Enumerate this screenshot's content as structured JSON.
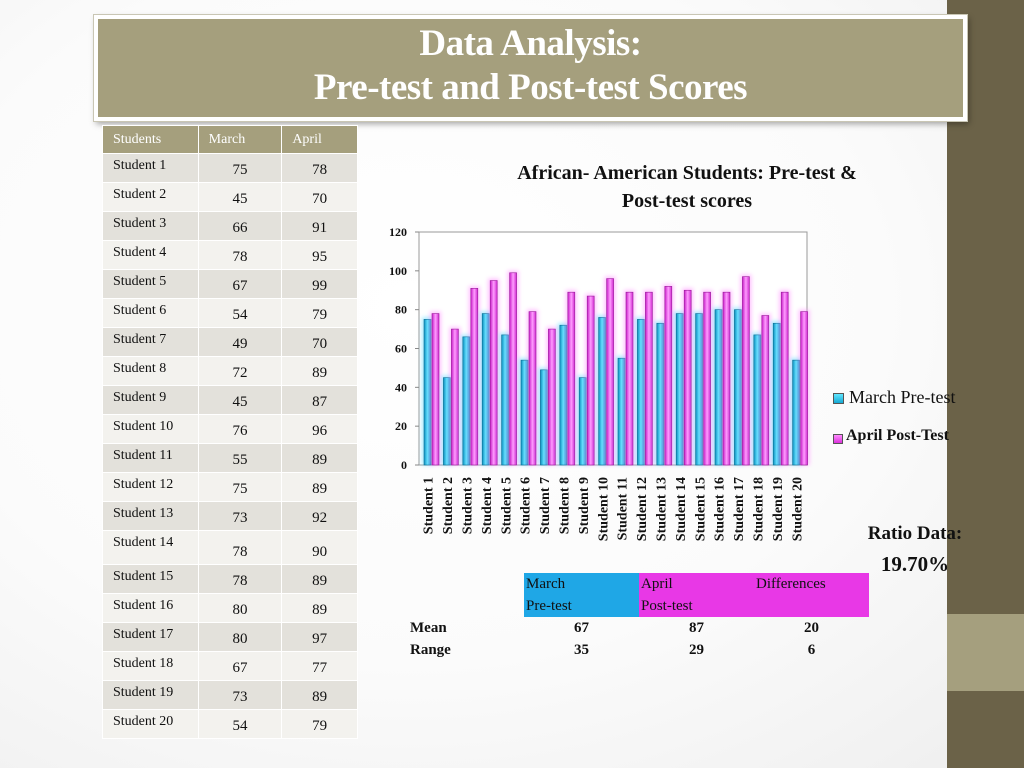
{
  "slide": {
    "title_line1": "Data Analysis:",
    "title_line2": "Pre-test and Post-test Scores"
  },
  "table": {
    "headers": [
      "Students",
      "March",
      "April"
    ],
    "rows": [
      {
        "student": "Student 1",
        "march": "75",
        "april": "78"
      },
      {
        "student": "Student 2",
        "march": "45",
        "april": "70"
      },
      {
        "student": "Student 3",
        "march": "66",
        "april": "91"
      },
      {
        "student": "Student 4",
        "march": "78",
        "april": "95"
      },
      {
        "student": "Student 5",
        "march": "67",
        "april": "99"
      },
      {
        "student": "Student 6",
        "march": "54",
        "april": "79"
      },
      {
        "student": "Student 7",
        "march": "49",
        "april": "70"
      },
      {
        "student": "Student 8",
        "march": "72",
        "april": "89"
      },
      {
        "student": "Student 9",
        "march": "45",
        "april": "87"
      },
      {
        "student": "Student 10",
        "march": "76",
        "april": "96"
      },
      {
        "student": "Student 11",
        "march": "55",
        "april": "89"
      },
      {
        "student": "Student 12",
        "march": "75",
        "april": "89"
      },
      {
        "student": "Student 13",
        "march": "73",
        "april": "92"
      },
      {
        "student": "Student 14",
        "march": "78",
        "april": "90"
      },
      {
        "student": "Student 15",
        "march": "78",
        "april": "89"
      },
      {
        "student": "Student 16",
        "march": "80",
        "april": "89"
      },
      {
        "student": "Student 17",
        "march": "80",
        "april": "97"
      },
      {
        "student": "Student 18",
        "march": "67",
        "april": "77"
      },
      {
        "student": "Student 19",
        "march": "73",
        "april": "89"
      },
      {
        "student": "Student 20",
        "march": "54",
        "april": "79"
      }
    ]
  },
  "chart_data": {
    "type": "bar",
    "title": "African- American Students: Pre-test & Post-test scores",
    "title_lines": [
      "African- American Students: Pre-test &",
      "Post-test scores"
    ],
    "categories": [
      "Student 1",
      "Student 2",
      "Student 3",
      "Student 4",
      "Student 5",
      "Student 6",
      "Student 7",
      "Student 8",
      "Student 9",
      "Student 10",
      "Student 11",
      "Student 12",
      "Student 13",
      "Student 14",
      "Student 15",
      "Student 16",
      "Student 17",
      "Student 18",
      "Student 19",
      "Student 20"
    ],
    "series": [
      {
        "name": "March Pre-test",
        "color": "#1ab4e0",
        "values": [
          75,
          45,
          66,
          78,
          67,
          54,
          49,
          72,
          45,
          76,
          55,
          75,
          73,
          78,
          78,
          80,
          80,
          67,
          73,
          54
        ]
      },
      {
        "name": "April Post-Test",
        "color": "#e23fe2",
        "values": [
          78,
          70,
          91,
          95,
          99,
          79,
          70,
          89,
          87,
          96,
          89,
          89,
          92,
          90,
          89,
          89,
          97,
          77,
          89,
          79
        ]
      }
    ],
    "ylim": [
      0,
      120
    ],
    "yticks": [
      0,
      20,
      40,
      60,
      80,
      100,
      120
    ],
    "xlabel": "",
    "ylabel": "",
    "grid": false,
    "legend": "right"
  },
  "ratio": {
    "label": "Ratio Data:",
    "value": "19.70%"
  },
  "stats": {
    "header_row1": [
      "March",
      "April",
      "Differences"
    ],
    "header_row2": [
      "Pre-test",
      "Post-test",
      ""
    ],
    "rows": [
      {
        "label": "Mean",
        "march": "67",
        "april": "87",
        "diff": "20"
      },
      {
        "label": "Range",
        "march": "35",
        "april": "29",
        "diff": "6"
      }
    ],
    "colors": {
      "march": "#1fa7e6",
      "april": "#e838e6"
    }
  }
}
